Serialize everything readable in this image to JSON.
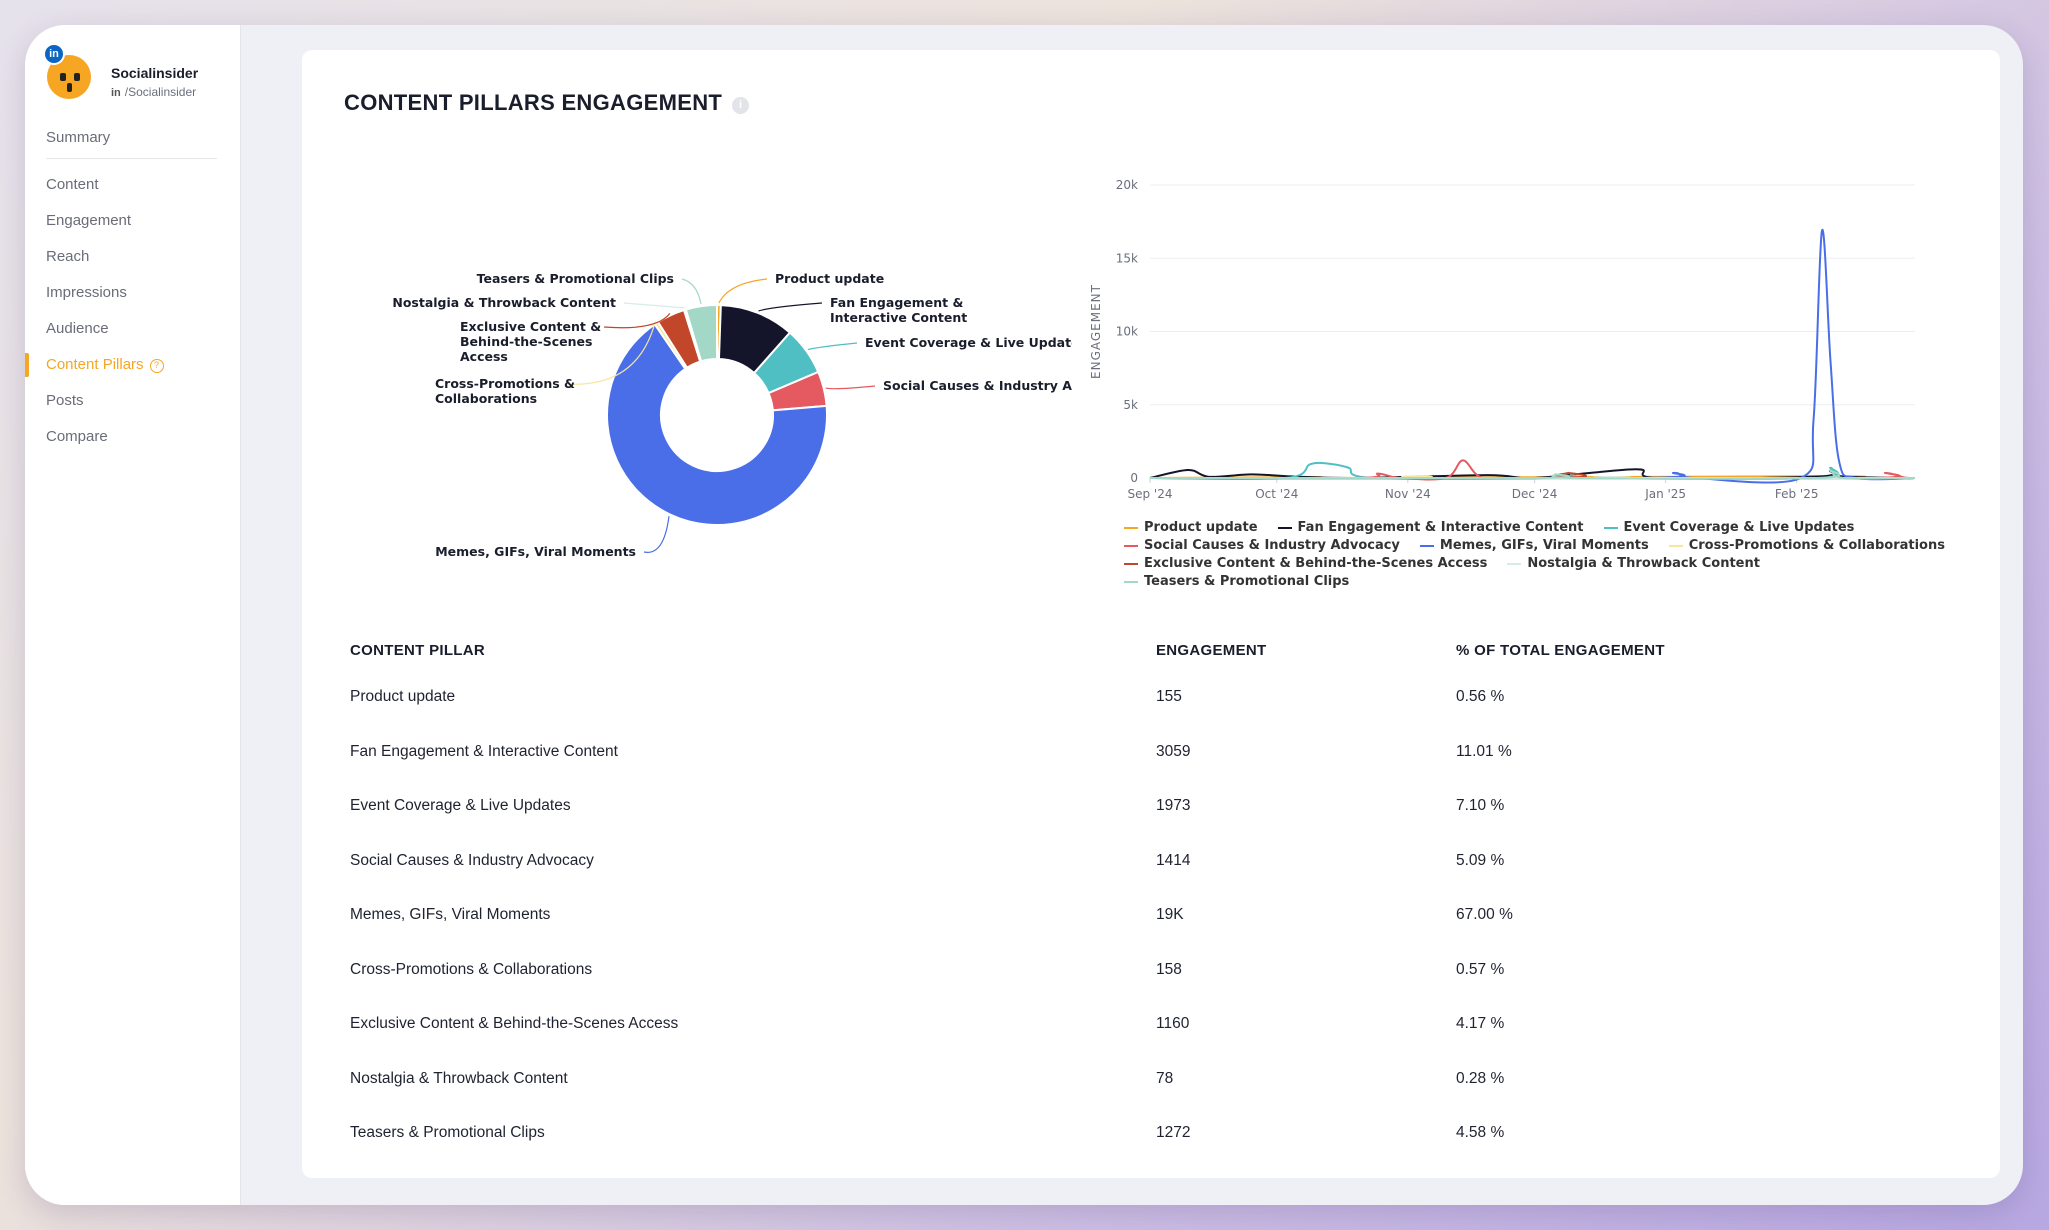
{
  "profile": {
    "name": "Socialinsider",
    "handle": "/Socialinsider",
    "network_icon": "in"
  },
  "nav": {
    "items": [
      {
        "label": "Summary"
      },
      {
        "label": "Content"
      },
      {
        "label": "Engagement"
      },
      {
        "label": "Reach"
      },
      {
        "label": "Impressions"
      },
      {
        "label": "Audience"
      },
      {
        "label": "Content Pillars",
        "active": true
      },
      {
        "label": "Posts"
      },
      {
        "label": "Compare"
      }
    ],
    "help_glyph": "?"
  },
  "card": {
    "title": "CONTENT PILLARS ENGAGEMENT",
    "info_glyph": "i"
  },
  "colors": {
    "accent": "#f5a623",
    "Product update": "#f6a623",
    "Fan Engagement & Interactive Content": "#14152b",
    "Event Coverage & Live Updates": "#4fbfc4",
    "Social Causes & Industry Advocacy": "#e45a60",
    "Memes, GIFs, Viral Moments": "#4a6ee8",
    "Cross-Promotions & Collaborations": "#f7e6a0",
    "Exclusive Content & Behind-the-Scenes Access": "#c2462a",
    "Nostalgia & Throwback Content": "#d6ece6",
    "Teasers & Promotional Clips": "#a4d8c6"
  },
  "chart_data": [
    {
      "type": "pie",
      "donut": true,
      "labels": [
        "Product update",
        "Fan Engagement & Interactive Content",
        "Event Coverage & Live Updates",
        "Social Causes & Industry Advocacy",
        "Memes, GIFs, Viral Moments",
        "Cross-Promotions & Collaborations",
        "Exclusive Content & Behind-the-Scenes Access",
        "Nostalgia & Throwback Content",
        "Teasers & Promotional Clips"
      ],
      "values": [
        0.56,
        11.01,
        7.1,
        5.09,
        67.0,
        0.57,
        4.17,
        0.28,
        4.58
      ]
    },
    {
      "type": "line",
      "ylabel": "ENGAGEMENT",
      "ylim": [
        0,
        20000
      ],
      "yticks": [
        0,
        5000,
        10000,
        15000,
        20000
      ],
      "ytick_labels": [
        "0",
        "5k",
        "10k",
        "15k",
        "20k"
      ],
      "xlim": [
        "2024-09-01",
        "2025-03-01"
      ],
      "xticks": [
        "2024-09-01",
        "2024-10-01",
        "2024-11-01",
        "2024-12-01",
        "2025-01-01",
        "2025-02-01"
      ],
      "xtick_labels": [
        "Sep '24",
        "Oct '24",
        "Nov '24",
        "Dec '24",
        "Jan '25",
        "Feb '25"
      ],
      "grid": true,
      "legend": "bottom",
      "series": [
        {
          "name": "Product update",
          "points": [
            [
              "2024-09-01",
              0
            ],
            [
              "2024-10-10",
              60
            ],
            [
              "2024-10-15",
              0
            ],
            [
              "2025-02-08",
              120
            ],
            [
              "2025-02-12",
              0
            ],
            [
              "2025-03-01",
              0
            ]
          ]
        },
        {
          "name": "Fan Engagement & Interactive Content",
          "points": [
            [
              "2024-09-01",
              0
            ],
            [
              "2024-09-10",
              550
            ],
            [
              "2024-09-15",
              80
            ],
            [
              "2024-09-25",
              250
            ],
            [
              "2024-10-05",
              100
            ],
            [
              "2024-10-20",
              0
            ],
            [
              "2024-11-20",
              200
            ],
            [
              "2024-12-01",
              0
            ],
            [
              "2024-12-25",
              600
            ],
            [
              "2024-12-30",
              0
            ],
            [
              "2025-02-06",
              100
            ],
            [
              "2025-02-09",
              500
            ],
            [
              "2025-02-12",
              100
            ],
            [
              "2025-03-01",
              0
            ]
          ]
        },
        {
          "name": "Event Coverage & Live Updates",
          "points": [
            [
              "2024-09-01",
              0
            ],
            [
              "2024-10-03",
              0
            ],
            [
              "2024-10-09",
              950
            ],
            [
              "2024-10-14",
              950
            ],
            [
              "2024-10-18",
              700
            ],
            [
              "2024-10-24",
              0
            ],
            [
              "2024-12-05",
              0
            ],
            [
              "2024-12-10",
              250
            ],
            [
              "2024-12-15",
              0
            ],
            [
              "2025-02-06",
              0
            ],
            [
              "2025-02-09",
              700
            ],
            [
              "2025-02-12",
              0
            ],
            [
              "2025-03-01",
              0
            ]
          ]
        },
        {
          "name": "Social Causes & Industry Advocacy",
          "points": [
            [
              "2024-09-01",
              0
            ],
            [
              "2024-10-20",
              0
            ],
            [
              "2024-10-25",
              300
            ],
            [
              "2024-10-30",
              0
            ],
            [
              "2024-11-10",
              0
            ],
            [
              "2024-11-14",
              1200
            ],
            [
              "2024-11-18",
              100
            ],
            [
              "2024-11-25",
              0
            ],
            [
              "2025-02-18",
              0
            ],
            [
              "2025-02-22",
              350
            ],
            [
              "2025-02-27",
              0
            ],
            [
              "2025-03-01",
              0
            ]
          ]
        },
        {
          "name": "Memes, GIFs, Viral Moments",
          "points": [
            [
              "2024-09-01",
              0
            ],
            [
              "2024-12-25",
              0
            ],
            [
              "2025-01-03",
              350
            ],
            [
              "2025-01-08",
              0
            ],
            [
              "2025-02-02",
              0
            ],
            [
              "2025-02-05",
              4000
            ],
            [
              "2025-02-07",
              16900
            ],
            [
              "2025-02-09",
              8000
            ],
            [
              "2025-02-11",
              1200
            ],
            [
              "2025-02-15",
              0
            ],
            [
              "2025-03-01",
              0
            ]
          ]
        },
        {
          "name": "Cross-Promotions & Collaborations",
          "points": [
            [
              "2024-09-01",
              0
            ],
            [
              "2024-11-01",
              0
            ],
            [
              "2024-11-05",
              150
            ],
            [
              "2024-11-09",
              0
            ],
            [
              "2025-03-01",
              0
            ]
          ]
        },
        {
          "name": "Exclusive Content & Behind-the-Scenes Access",
          "points": [
            [
              "2024-09-01",
              0
            ],
            [
              "2024-12-05",
              0
            ],
            [
              "2024-12-09",
              350
            ],
            [
              "2024-12-13",
              0
            ],
            [
              "2025-03-01",
              0
            ]
          ]
        },
        {
          "name": "Nostalgia & Throwback Content",
          "points": [
            [
              "2024-09-01",
              0
            ],
            [
              "2024-12-15",
              0
            ],
            [
              "2024-12-18",
              80
            ],
            [
              "2024-12-21",
              0
            ],
            [
              "2025-03-01",
              0
            ]
          ]
        },
        {
          "name": "Teasers & Promotional Clips",
          "points": [
            [
              "2024-09-01",
              0
            ],
            [
              "2024-12-01",
              0
            ],
            [
              "2024-12-06",
              250
            ],
            [
              "2024-12-11",
              0
            ],
            [
              "2025-02-06",
              0
            ],
            [
              "2025-02-09",
              500
            ],
            [
              "2025-02-12",
              0
            ],
            [
              "2025-03-01",
              0
            ]
          ]
        }
      ]
    }
  ],
  "table": {
    "headers": [
      "CONTENT PILLAR",
      "ENGAGEMENT",
      "% OF TOTAL ENGAGEMENT"
    ],
    "rows": [
      [
        "Product update",
        "155",
        "0.56 %"
      ],
      [
        "Fan Engagement & Interactive Content",
        "3059",
        "11.01 %"
      ],
      [
        "Event Coverage & Live Updates",
        "1973",
        "7.10 %"
      ],
      [
        "Social Causes & Industry Advocacy",
        "1414",
        "5.09 %"
      ],
      [
        "Memes, GIFs, Viral Moments",
        "19K",
        "67.00 %"
      ],
      [
        "Cross-Promotions & Collaborations",
        "158",
        "0.57 %"
      ],
      [
        "Exclusive Content & Behind-the-Scenes Access",
        "1160",
        "4.17 %"
      ],
      [
        "Nostalgia & Throwback Content",
        "78",
        "0.28 %"
      ],
      [
        "Teasers & Promotional Clips",
        "1272",
        "4.58 %"
      ]
    ]
  }
}
